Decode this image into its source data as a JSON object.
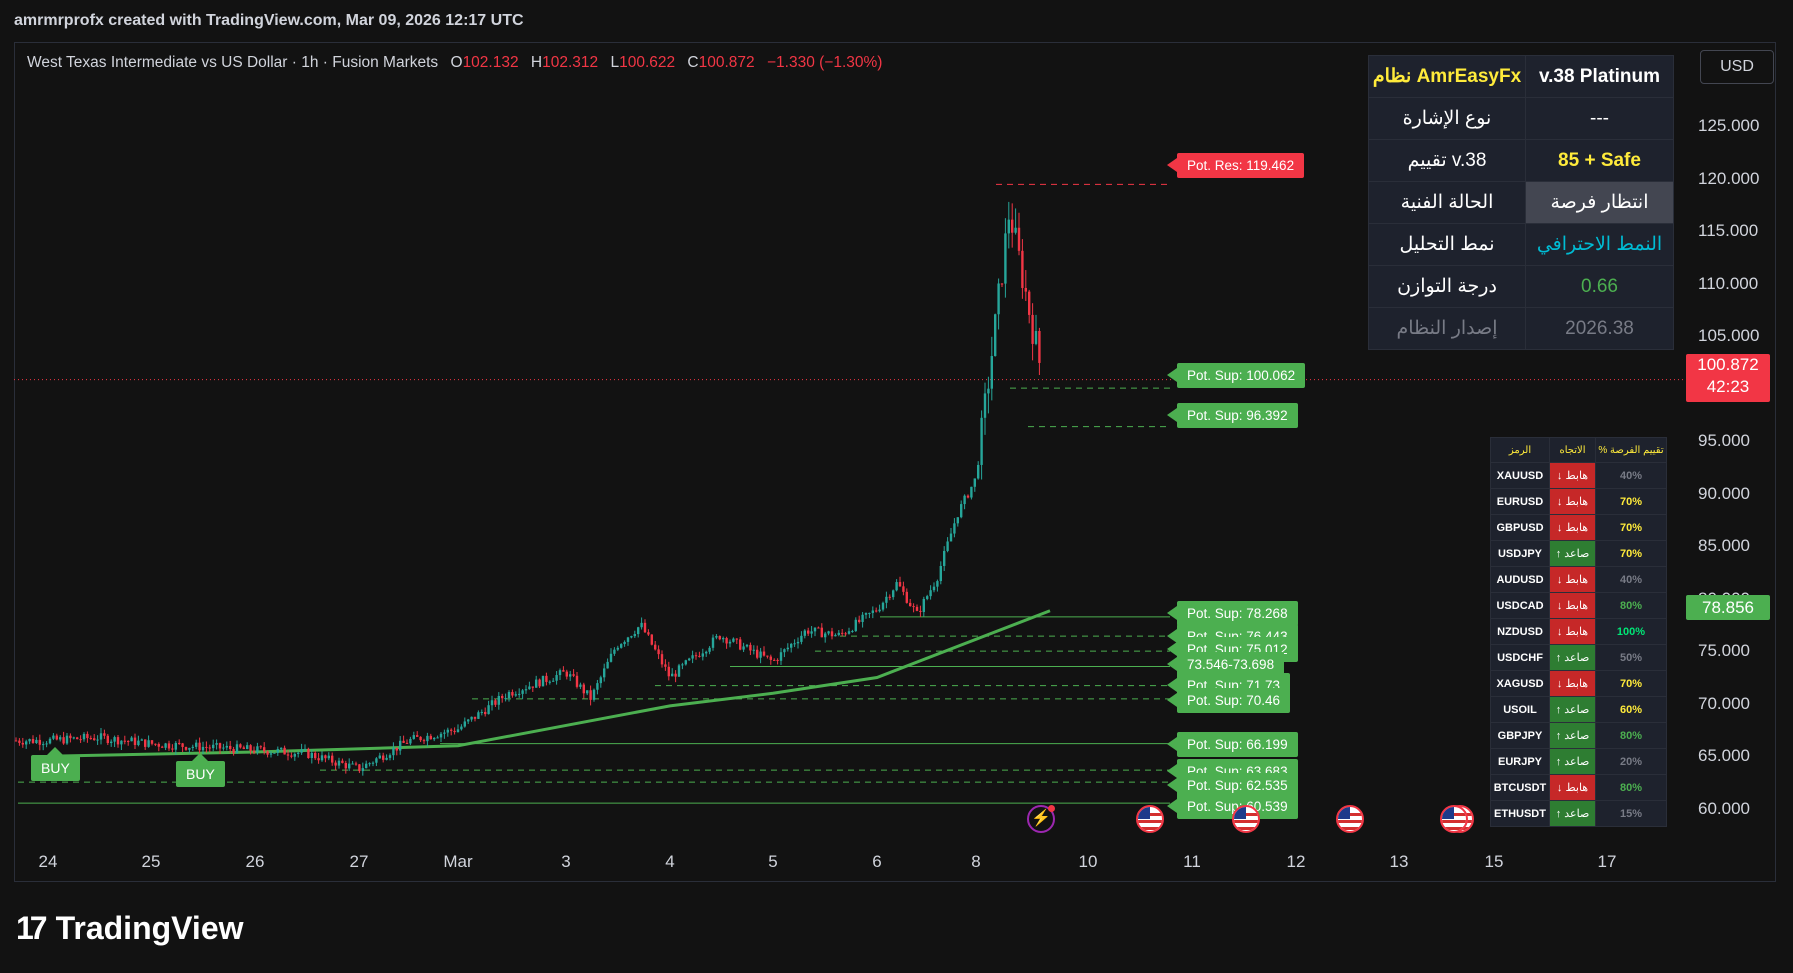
{
  "header": {
    "attribution": "amrmrprofx created with TradingView.com, Mar 09, 2026 12:17 UTC"
  },
  "legend": {
    "symbol": "West Texas Intermediate vs US Dollar · 1h · Fusion Markets",
    "o_label": "O",
    "o": "102.132",
    "h_label": "H",
    "h": "102.312",
    "l_label": "L",
    "l": "100.622",
    "c_label": "C",
    "c": "100.872",
    "change": "−1.330 (−1.30%)"
  },
  "currency_button": "USD",
  "price_badge": {
    "price": "100.872",
    "countdown": "42:23"
  },
  "ma_badge": "78.856",
  "signals": [
    "BUY",
    "BUY"
  ],
  "levels": {
    "res": "Pot. Res: 119.462",
    "sup": [
      "Pot. Sup: 100.062",
      "Pot. Sup: 96.392",
      "Pot. Sup: 78.268",
      "Pot. Sup: 76.443",
      "Pot. Sup: 75.012",
      "73.546-73.698",
      "Pot. Sup: 71.73",
      "Pot. Sup: 70.46",
      "Pot. Sup: 66.199",
      "Pot. Sup: 63.683",
      "Pot. Sup: 62.535",
      "Pot. Sup: 60.539"
    ]
  },
  "info_table": {
    "rows": [
      {
        "left": "نظام AmrEasyFx",
        "right": "v.38 Platinum"
      },
      {
        "left": "نوع الإشارة",
        "right": "---"
      },
      {
        "left": "تقييم v.38",
        "right": "85 + Safe"
      },
      {
        "left": "الحالة الفنية",
        "right": "انتظار فرصة"
      },
      {
        "left": "نمط التحليل",
        "right": "النمط الاحترافي"
      },
      {
        "left": "درجة التوازن",
        "right": "0.66"
      },
      {
        "left": "إصدار النظام",
        "right": "2026.38"
      }
    ]
  },
  "scanner": {
    "headers": [
      "الرمز",
      "الاتجاه",
      "% تقييم الفرصة"
    ],
    "down_label": "↓ هابط",
    "up_label": "↑ صاعد",
    "rows": [
      {
        "symbol": "XAUUSD",
        "dir": "down",
        "score": "40%"
      },
      {
        "symbol": "EURUSD",
        "dir": "down",
        "score": "70%"
      },
      {
        "symbol": "GBPUSD",
        "dir": "down",
        "score": "70%"
      },
      {
        "symbol": "USDJPY",
        "dir": "up",
        "score": "70%"
      },
      {
        "symbol": "AUDUSD",
        "dir": "down",
        "score": "40%"
      },
      {
        "symbol": "USDCAD",
        "dir": "down",
        "score": "80%"
      },
      {
        "symbol": "NZDUSD",
        "dir": "down",
        "score": "100%"
      },
      {
        "symbol": "USDCHF",
        "dir": "up",
        "score": "50%"
      },
      {
        "symbol": "XAGUSD",
        "dir": "down",
        "score": "70%"
      },
      {
        "symbol": "USOIL",
        "dir": "up",
        "score": "60%"
      },
      {
        "symbol": "GBPJPY",
        "dir": "up",
        "score": "80%"
      },
      {
        "symbol": "EURJPY",
        "dir": "up",
        "score": "20%"
      },
      {
        "symbol": "BTCUSDT",
        "dir": "down",
        "score": "80%"
      },
      {
        "symbol": "ETHUSDT",
        "dir": "up",
        "score": "15%"
      }
    ]
  },
  "colors": {
    "up": "#26a69a",
    "down": "#f23645",
    "ma": "#4caf50",
    "scan_down_bg": "#c62828",
    "scan_up_bg": "#2e7d32"
  },
  "logo": "TradingView",
  "chart_data": {
    "type": "candlestick",
    "yaxis": {
      "ticks": [
        "125.000",
        "120.000",
        "115.000",
        "110.000",
        "105.000",
        "100.000",
        "95.000",
        "90.000",
        "85.000",
        "80.000",
        "75.000",
        "70.000",
        "65.000",
        "60.000"
      ],
      "range": [
        57.5,
        131.5
      ]
    },
    "xaxis": {
      "ticks": [
        "24",
        "25",
        "26",
        "27",
        "Mar",
        "3",
        "4",
        "5",
        "6",
        "8",
        "10",
        "11",
        "12",
        "13",
        "15",
        "17"
      ]
    },
    "close_path": [
      [
        "24",
        66.5
      ],
      [
        "24",
        66.8
      ],
      [
        "25",
        66.2
      ],
      [
        "25",
        65.9
      ],
      [
        "26",
        65.6
      ],
      [
        "26",
        65.3
      ],
      [
        "27",
        63.8
      ],
      [
        "27",
        66.5
      ],
      [
        "Mar",
        67.6
      ],
      [
        "Mar",
        71.0
      ],
      [
        "3",
        73.0
      ],
      [
        "3",
        70.5
      ],
      [
        "3",
        75.5
      ],
      [
        "3",
        77.5
      ],
      [
        "4",
        72.5
      ],
      [
        "4",
        76.5
      ],
      [
        "5",
        74.0
      ],
      [
        "5",
        77.0
      ],
      [
        "5",
        76.5
      ],
      [
        "6",
        79.0
      ],
      [
        "6",
        81.5
      ],
      [
        "6",
        78.5
      ],
      [
        "6",
        82.0
      ],
      [
        "6",
        88.0
      ],
      [
        "8",
        91.5
      ],
      [
        "8",
        104.0
      ],
      [
        "8",
        117.0
      ],
      [
        "8",
        109.0
      ],
      [
        "8",
        101.0
      ],
      [
        "8",
        100.9
      ]
    ],
    "moving_average": [
      [
        "24",
        65.0
      ],
      [
        "26",
        65.4
      ],
      [
        "Mar",
        66.0
      ],
      [
        "4",
        69.8
      ],
      [
        "5",
        71.0
      ],
      [
        "6",
        72.5
      ],
      [
        "8",
        78.86
      ]
    ],
    "current_price": 100.872
  }
}
